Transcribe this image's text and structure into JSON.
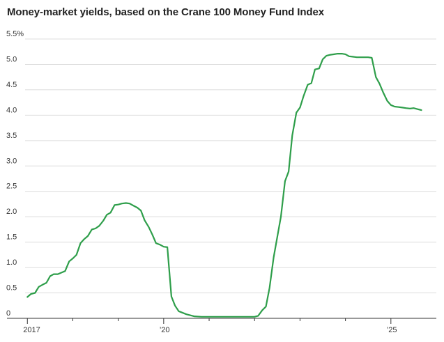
{
  "chart_data": {
    "type": "line",
    "title": "Money-market yields, based on the Crane 100 Money Fund Index",
    "xlabel": "",
    "ylabel": "",
    "ylim": [
      0,
      5.5
    ],
    "xlim": [
      2016.95,
      2026.0
    ],
    "grid": true,
    "legend": "none",
    "yticks": [
      {
        "value": 0,
        "label": "0"
      },
      {
        "value": 0.5,
        "label": "0.5"
      },
      {
        "value": 1.0,
        "label": "1.0"
      },
      {
        "value": 1.5,
        "label": "1.5"
      },
      {
        "value": 2.0,
        "label": "2.0"
      },
      {
        "value": 2.5,
        "label": "2.5"
      },
      {
        "value": 3.0,
        "label": "3.0"
      },
      {
        "value": 3.5,
        "label": "3.5"
      },
      {
        "value": 4.0,
        "label": "4.0"
      },
      {
        "value": 4.5,
        "label": "4.5"
      },
      {
        "value": 5.0,
        "label": "5.0"
      },
      {
        "value": 5.5,
        "label": "5.5%"
      }
    ],
    "xticks": [
      {
        "value": 2017,
        "label": "2017"
      },
      {
        "value": 2020,
        "label": "’20"
      },
      {
        "value": 2025,
        "label": "’25"
      }
    ],
    "minor_xticks": [
      2018,
      2019,
      2021,
      2022,
      2023,
      2024
    ],
    "series": [
      {
        "name": "",
        "color": "#2e9e4a",
        "x": [
          2017.0,
          2017.08,
          2017.17,
          2017.25,
          2017.33,
          2017.42,
          2017.5,
          2017.58,
          2017.67,
          2017.75,
          2017.83,
          2017.92,
          2018.0,
          2018.08,
          2018.17,
          2018.25,
          2018.33,
          2018.42,
          2018.5,
          2018.58,
          2018.67,
          2018.75,
          2018.83,
          2018.92,
          2019.0,
          2019.08,
          2019.17,
          2019.25,
          2019.33,
          2019.42,
          2019.5,
          2019.58,
          2019.67,
          2019.75,
          2019.83,
          2019.92,
          2020.0,
          2020.08,
          2020.17,
          2020.25,
          2020.33,
          2020.5,
          2020.67,
          2020.83,
          2021.0,
          2021.5,
          2022.0,
          2022.08,
          2022.17,
          2022.25,
          2022.33,
          2022.42,
          2022.5,
          2022.58,
          2022.67,
          2022.75,
          2022.83,
          2022.92,
          2023.0,
          2023.08,
          2023.17,
          2023.25,
          2023.33,
          2023.42,
          2023.5,
          2023.58,
          2023.67,
          2023.75,
          2023.83,
          2023.92,
          2024.0,
          2024.08,
          2024.17,
          2024.25,
          2024.33,
          2024.42,
          2024.5,
          2024.58,
          2024.67,
          2024.75,
          2024.83,
          2024.92,
          2025.0,
          2025.08,
          2025.17,
          2025.25,
          2025.33,
          2025.42,
          2025.5,
          2025.58,
          2025.67
        ],
        "values": [
          0.42,
          0.48,
          0.5,
          0.62,
          0.66,
          0.7,
          0.83,
          0.87,
          0.87,
          0.9,
          0.93,
          1.12,
          1.18,
          1.25,
          1.48,
          1.56,
          1.62,
          1.75,
          1.77,
          1.82,
          1.92,
          2.04,
          2.08,
          2.23,
          2.24,
          2.26,
          2.27,
          2.26,
          2.22,
          2.18,
          2.12,
          1.93,
          1.8,
          1.65,
          1.48,
          1.45,
          1.41,
          1.4,
          0.43,
          0.25,
          0.14,
          0.08,
          0.04,
          0.03,
          0.03,
          0.03,
          0.03,
          0.05,
          0.16,
          0.23,
          0.6,
          1.2,
          1.6,
          2.0,
          2.7,
          2.89,
          3.6,
          4.05,
          4.15,
          4.38,
          4.6,
          4.63,
          4.9,
          4.92,
          5.1,
          5.17,
          5.19,
          5.2,
          5.21,
          5.21,
          5.2,
          5.16,
          5.15,
          5.14,
          5.14,
          5.14,
          5.14,
          5.13,
          4.75,
          4.62,
          4.45,
          4.28,
          4.2,
          4.17,
          4.16,
          4.15,
          4.14,
          4.13,
          4.14,
          4.12,
          4.1
        ]
      }
    ]
  }
}
